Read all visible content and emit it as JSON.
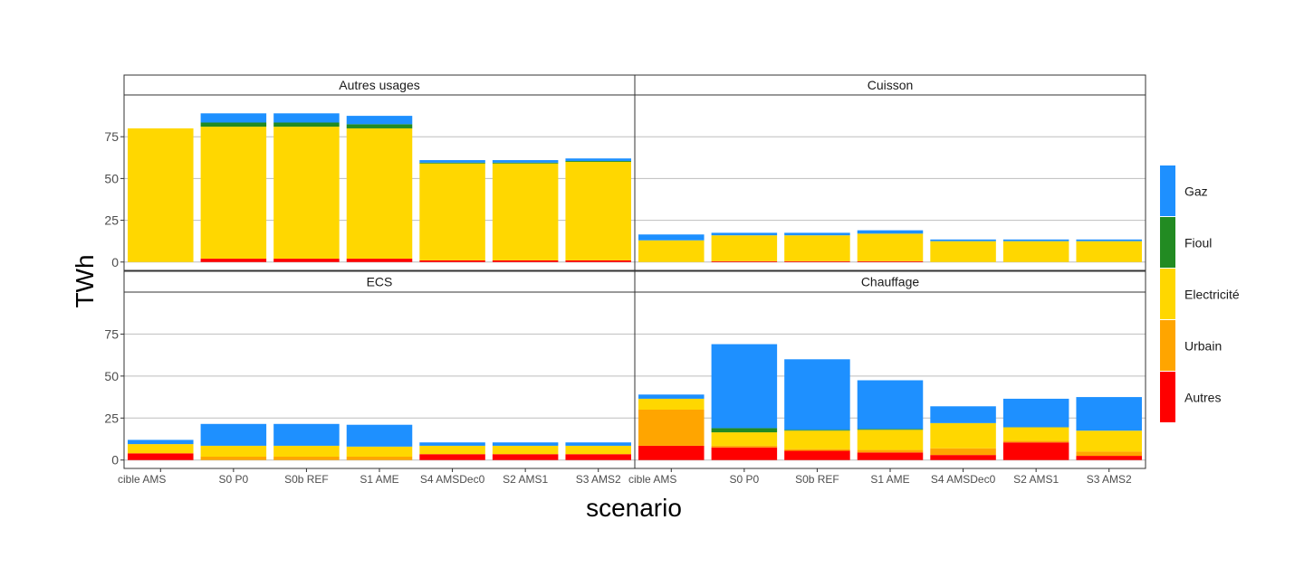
{
  "chart_data": {
    "type": "bar",
    "stacked": true,
    "xlabel": "scenario",
    "ylabel": "TWh",
    "ylim": [
      -5,
      100
    ],
    "yticks": [
      0,
      25,
      50,
      75
    ],
    "grid": true,
    "legend_position": "right",
    "categories": [
      "cible AMS",
      "S0 P0",
      "S0b REF",
      "S1 AME",
      "S4 AMSDec0",
      "S2 AMS1",
      "S3 AMS2"
    ],
    "category_labels": [
      "cible AMS",
      "S0 P0",
      "S0b REF",
      "S1 AME",
      "S4 AMSDec0",
      "S2 AMS1",
      "S3 AMS2"
    ],
    "series_order_bottom_to_top": [
      "Autres",
      "Urbain",
      "Electricité",
      "Fioul",
      "Gaz"
    ],
    "legend_top_to_bottom": [
      "Gaz",
      "Fioul",
      "Electricité",
      "Urbain",
      "Autres"
    ],
    "colors": {
      "Gaz": "#1E90FF",
      "Fioul": "#228B22",
      "Electricité": "#FFD700",
      "Urbain": "#FFA500",
      "Autres": "#FF0000"
    },
    "panels": [
      {
        "title": "Autres usages",
        "series": {
          "Autres": [
            0,
            2,
            2,
            2,
            1,
            1,
            1
          ],
          "Urbain": [
            0,
            0,
            0,
            0,
            0,
            0,
            0
          ],
          "Electricité": [
            80,
            79,
            79,
            78,
            58,
            58,
            59
          ],
          "Fioul": [
            0,
            2.5,
            2.5,
            2.5,
            0.5,
            0.5,
            0.5
          ],
          "Gaz": [
            0,
            5.5,
            5.5,
            5,
            1.5,
            1.5,
            1.5
          ]
        }
      },
      {
        "title": "Cuisson",
        "series": {
          "Autres": [
            0,
            0.5,
            0.5,
            0.5,
            0,
            0,
            0
          ],
          "Urbain": [
            0,
            0,
            0,
            0,
            0,
            0,
            0
          ],
          "Electricité": [
            13,
            15.5,
            15.5,
            16.5,
            12.5,
            12.5,
            12.5
          ],
          "Fioul": [
            0,
            0,
            0,
            0,
            0,
            0,
            0
          ],
          "Gaz": [
            3.5,
            1.5,
            1.5,
            2,
            1,
            1,
            1
          ]
        }
      },
      {
        "title": "ECS",
        "series": {
          "Autres": [
            4,
            0,
            0,
            0,
            3.5,
            3.5,
            3.5
          ],
          "Urbain": [
            0,
            2,
            2,
            2,
            0,
            0,
            0
          ],
          "Electricité": [
            5.5,
            6.5,
            6.5,
            6,
            5,
            5,
            5
          ],
          "Fioul": [
            0,
            0,
            0,
            0,
            0,
            0,
            0
          ],
          "Gaz": [
            2.5,
            13,
            13,
            13,
            2,
            2,
            2
          ]
        }
      },
      {
        "title": "Chauffage",
        "series": {
          "Autres": [
            8.5,
            7.5,
            5.5,
            4.5,
            3,
            10.5,
            2.5
          ],
          "Urbain": [
            21.5,
            1,
            1,
            1.5,
            4,
            1,
            2.5
          ],
          "Electricité": [
            6.5,
            8,
            11,
            12,
            15,
            8,
            12.5
          ],
          "Fioul": [
            0,
            2.5,
            0.5,
            0.5,
            0,
            0,
            0
          ],
          "Gaz": [
            2.5,
            50,
            42,
            29,
            10,
            17,
            20
          ]
        }
      }
    ]
  }
}
